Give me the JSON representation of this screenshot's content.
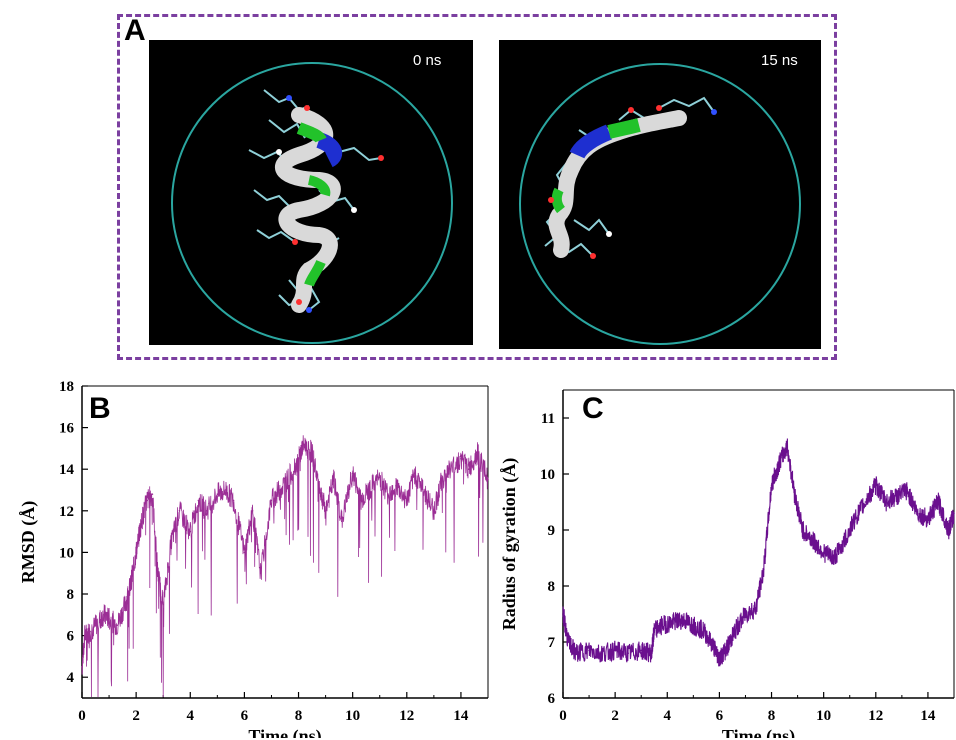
{
  "panels": {
    "a": {
      "letter": "A",
      "snapshots": [
        {
          "time_label": "0 ns"
        },
        {
          "time_label": "15 ns"
        }
      ]
    },
    "b": {
      "letter": "B"
    },
    "c": {
      "letter": "C"
    }
  },
  "colors": {
    "frame": "#7b3fa0",
    "trace": "#9b2d95",
    "trace_c": "#6a0f8e",
    "circle": "#2aa6a0",
    "helix_white": "#d9d9d9",
    "helix_green": "#22c22a",
    "helix_blue": "#1e2fd0",
    "sticks": "#8fd0d8"
  },
  "chart_data": [
    {
      "type": "line",
      "xlabel": "Time (ns)",
      "ylabel": "RMSD (Å)",
      "xlim": [
        0,
        15
      ],
      "ylim": [
        3,
        18
      ],
      "xticks": [
        0,
        2,
        4,
        6,
        8,
        10,
        12,
        14
      ],
      "yticks": [
        4,
        6,
        8,
        10,
        12,
        14,
        16,
        18
      ],
      "grid": false,
      "series": [
        {
          "x": [
            0,
            0.1,
            0.3,
            0.5,
            0.8,
            1.0,
            1.3,
            1.6,
            1.8,
            2.0,
            2.2,
            2.4,
            2.6,
            2.8,
            3.0,
            3.3,
            3.6,
            4.0,
            4.3,
            4.6,
            5.0,
            5.3,
            5.6,
            6.0,
            6.3,
            6.6,
            7.0,
            7.3,
            7.6,
            8.0,
            8.2,
            8.5,
            8.8,
            9.0,
            9.3,
            9.6,
            10.0,
            10.3,
            10.6,
            11.0,
            11.3,
            11.6,
            12.0,
            12.3,
            12.6,
            13.0,
            13.3,
            13.6,
            14.0,
            14.3,
            14.6,
            15.0
          ],
          "values": [
            4.5,
            6.0,
            6.2,
            6.5,
            7.0,
            6.8,
            6.5,
            7.5,
            8.5,
            10.0,
            11.5,
            12.5,
            12.8,
            9.0,
            7.5,
            10.5,
            12.0,
            11.0,
            12.5,
            12.0,
            12.8,
            13.0,
            12.5,
            10.0,
            12.0,
            9.0,
            12.5,
            13.0,
            13.5,
            14.5,
            15.2,
            14.8,
            13.0,
            12.0,
            13.5,
            11.5,
            13.8,
            12.5,
            13.0,
            13.6,
            12.8,
            13.2,
            12.5,
            13.8,
            13.0,
            12.0,
            13.5,
            14.0,
            14.5,
            14.0,
            14.8,
            13.5
          ]
        }
      ]
    },
    {
      "type": "line",
      "xlabel": "Time (ns)",
      "ylabel": "Radius of gyration (Å)",
      "xlim": [
        0,
        15
      ],
      "ylim": [
        6,
        11.5
      ],
      "xticks": [
        0,
        2,
        4,
        6,
        8,
        10,
        12,
        14
      ],
      "yticks": [
        6,
        7,
        8,
        9,
        10,
        11
      ],
      "grid": false,
      "series": [
        {
          "x": [
            0,
            0.2,
            0.5,
            1.0,
            1.5,
            2.0,
            2.5,
            3.0,
            3.4,
            3.5,
            3.8,
            4.2,
            4.6,
            5.0,
            5.4,
            5.8,
            6.0,
            6.3,
            6.6,
            7.0,
            7.4,
            7.7,
            8.0,
            8.3,
            8.6,
            8.9,
            9.2,
            9.6,
            10.0,
            10.4,
            10.8,
            11.2,
            11.6,
            12.0,
            12.4,
            12.8,
            13.2,
            13.6,
            14.0,
            14.4,
            14.8,
            15.0
          ],
          "values": [
            7.5,
            7.0,
            6.8,
            6.85,
            6.8,
            6.85,
            6.8,
            6.85,
            6.8,
            7.2,
            7.3,
            7.35,
            7.4,
            7.3,
            7.2,
            6.9,
            6.7,
            6.9,
            7.2,
            7.5,
            7.6,
            8.3,
            9.8,
            10.2,
            10.5,
            9.6,
            9.0,
            8.8,
            8.6,
            8.5,
            8.8,
            9.2,
            9.5,
            9.8,
            9.5,
            9.6,
            9.7,
            9.3,
            9.2,
            9.5,
            9.0,
            9.3
          ]
        }
      ]
    }
  ]
}
